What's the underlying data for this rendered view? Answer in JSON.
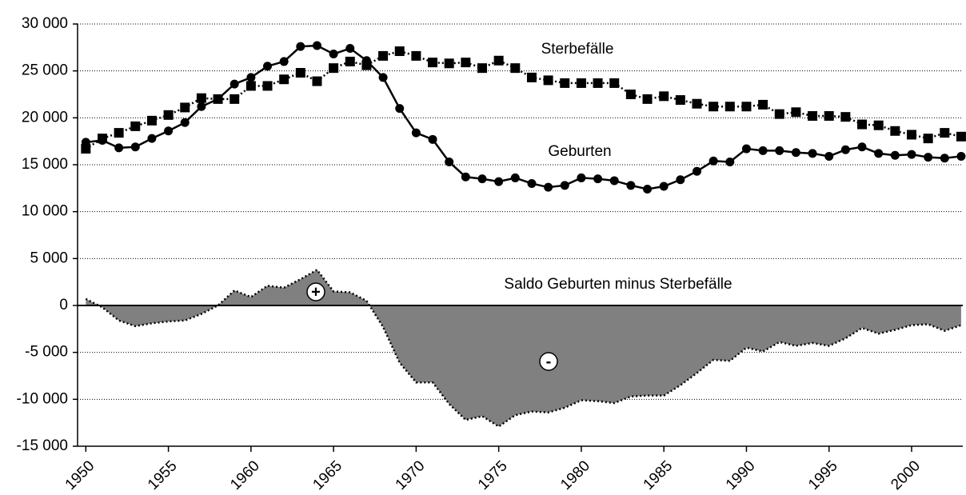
{
  "chart_data": {
    "type": "line",
    "x": [
      1950,
      1951,
      1952,
      1953,
      1954,
      1955,
      1956,
      1957,
      1958,
      1959,
      1960,
      1961,
      1962,
      1963,
      1964,
      1965,
      1966,
      1967,
      1968,
      1969,
      1970,
      1971,
      1972,
      1973,
      1974,
      1975,
      1976,
      1977,
      1978,
      1979,
      1980,
      1981,
      1982,
      1983,
      1984,
      1985,
      1986,
      1987,
      1988,
      1989,
      1990,
      1991,
      1992,
      1993,
      1994,
      1995,
      1996,
      1997,
      1998,
      1999,
      2000,
      2001,
      2002,
      2003
    ],
    "series": [
      {
        "name": "Geburten",
        "color": "#000000",
        "style": "solid",
        "marker": "circle",
        "values": [
          17400,
          17600,
          16800,
          16900,
          17800,
          18600,
          19500,
          21200,
          22000,
          23600,
          24300,
          25500,
          26000,
          27600,
          27700,
          26800,
          27400,
          26100,
          24300,
          21000,
          18400,
          17700,
          15300,
          13700,
          13500,
          13200,
          13600,
          13000,
          12600,
          12800,
          13600,
          13500,
          13300,
          12800,
          12400,
          12700,
          13400,
          14300,
          15400,
          15300,
          16700,
          16500,
          16500,
          16300,
          16200,
          15900,
          16600,
          16900,
          16200,
          16000,
          16100,
          15800,
          15700,
          15900
        ]
      },
      {
        "name": "Sterbefälle",
        "color": "#000000",
        "style": "dotted",
        "marker": "square",
        "values": [
          16700,
          17800,
          18400,
          19100,
          19700,
          20300,
          21100,
          22100,
          22000,
          22000,
          23400,
          23400,
          24100,
          24800,
          23900,
          25300,
          26000,
          25600,
          26600,
          27100,
          26600,
          25900,
          25800,
          25900,
          25300,
          26100,
          25300,
          24300,
          24000,
          23700,
          23700,
          23700,
          23700,
          22500,
          22000,
          22300,
          21900,
          21500,
          21200,
          21200,
          21200,
          21400,
          20400,
          20600,
          20200,
          20200,
          20100,
          19300,
          19200,
          18600,
          18200,
          17800,
          18400,
          18000
        ]
      },
      {
        "name": "Saldo Geburten minus Sterbefälle",
        "color": "#808080",
        "style": "area",
        "values": [
          700,
          -200,
          -1600,
          -2200,
          -1900,
          -1700,
          -1600,
          -900,
          0,
          1600,
          900,
          2100,
          1900,
          2800,
          3800,
          1500,
          1400,
          500,
          -2300,
          -6100,
          -8200,
          -8200,
          -10500,
          -12200,
          -11800,
          -12900,
          -11700,
          -11300,
          -11400,
          -10900,
          -10100,
          -10200,
          -10400,
          -9700,
          -9600,
          -9600,
          -8500,
          -7200,
          -5800,
          -5900,
          -4500,
          -4900,
          -3900,
          -4300,
          -4000,
          -4300,
          -3500,
          -2400,
          -3000,
          -2600,
          -2100,
          -2000,
          -2700,
          -2100
        ]
      }
    ],
    "annotations": [
      "+",
      "-"
    ],
    "xlim": [
      1949.5,
      2003.1
    ],
    "xticks": [
      1950,
      1955,
      1960,
      1965,
      1970,
      1975,
      1980,
      1985,
      1990,
      1995,
      2000
    ],
    "ylim": [
      -15000,
      30000
    ],
    "yticks": [
      {
        "value": -15000,
        "label": "-15 000"
      },
      {
        "value": -10000,
        "label": "-10 000"
      },
      {
        "value": -5000,
        "label": "-5 000"
      },
      0,
      {
        "value": 5000,
        "label": "5 000"
      },
      {
        "value": 10000,
        "label": "10 000"
      },
      {
        "value": 15000,
        "label": "15 000"
      },
      {
        "value": 20000,
        "label": "20 000"
      },
      {
        "value": 25000,
        "label": "25 000"
      },
      {
        "value": 30000,
        "label": "30 000"
      }
    ],
    "grid": true
  }
}
